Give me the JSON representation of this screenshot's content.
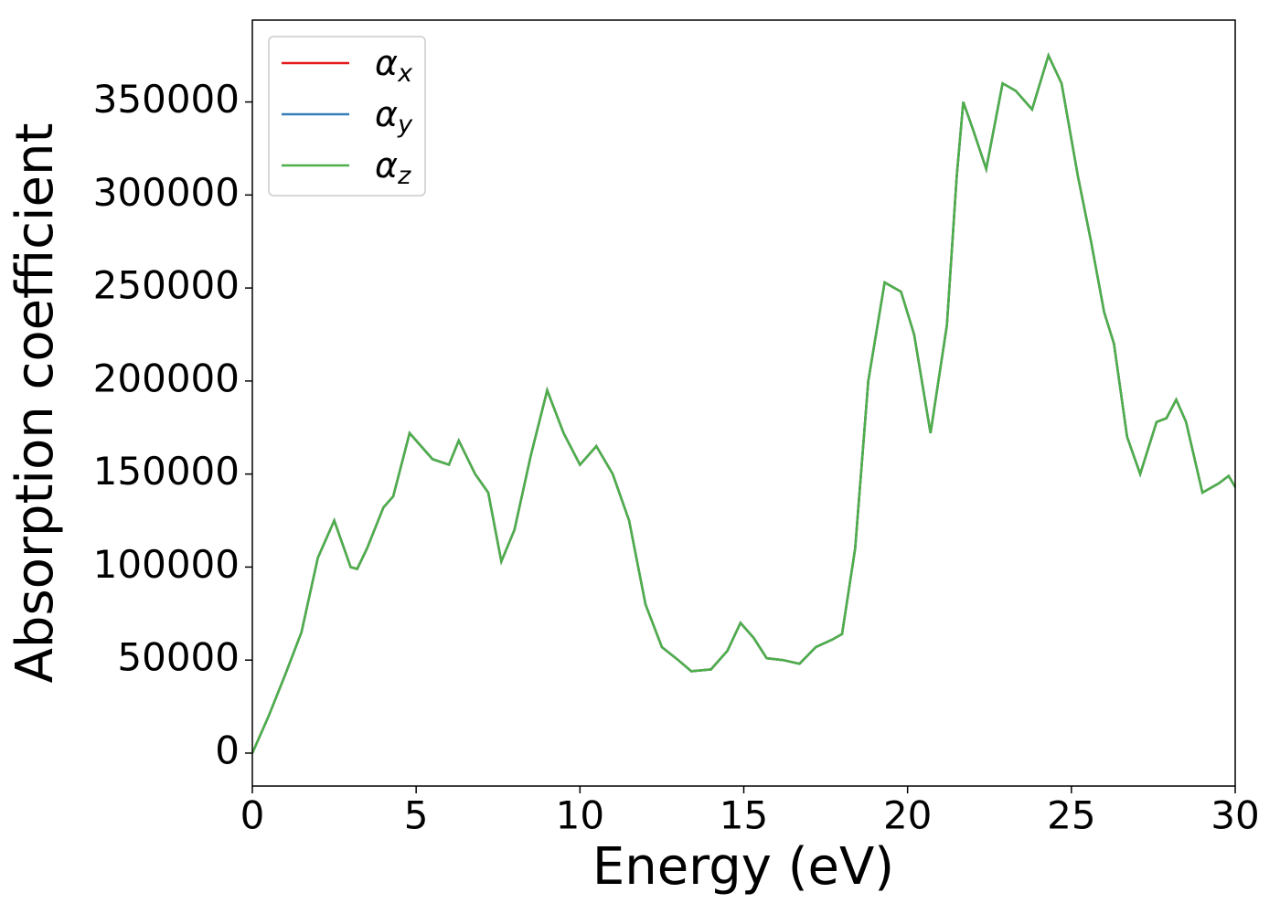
{
  "chart_data": {
    "type": "line",
    "x_label": "Energy (eV)",
    "y_label": "Absorption coefficient",
    "x": [
      0,
      0.5,
      1,
      1.5,
      2,
      2.5,
      3,
      3.2,
      3.5,
      4,
      4.3,
      4.8,
      5.5,
      6,
      6.3,
      6.8,
      7.2,
      7.6,
      8,
      8.5,
      9,
      9.5,
      10,
      10.5,
      11,
      11.5,
      12,
      12.5,
      13,
      13.4,
      14,
      14.5,
      14.9,
      15.3,
      15.7,
      16.2,
      16.7,
      17.2,
      17.7,
      18,
      18.4,
      18.8,
      19.3,
      19.8,
      20.2,
      20.7,
      21.2,
      21.5,
      21.7,
      22,
      22.4,
      22.9,
      23.3,
      23.8,
      24.3,
      24.7,
      25.2,
      25.6,
      26,
      26.3,
      26.7,
      27.1,
      27.6,
      27.9,
      28.2,
      28.5,
      29,
      29.5,
      29.8,
      30
    ],
    "series": [
      {
        "name": "αx",
        "color": "#e41a1c",
        "values": [
          0,
          20000,
          42000,
          65000,
          105000,
          125000,
          100000,
          99000,
          110000,
          132000,
          138000,
          172000,
          158000,
          155000,
          168000,
          150000,
          140000,
          103000,
          120000,
          160000,
          195000,
          172000,
          155000,
          165000,
          150000,
          125000,
          80000,
          57000,
          50000,
          44000,
          45000,
          55000,
          70000,
          62000,
          51000,
          50000,
          48000,
          57000,
          61000,
          64000,
          110000,
          200000,
          253000,
          248000,
          225000,
          172000,
          230000,
          310000,
          350000,
          335000,
          314000,
          360000,
          356000,
          346000,
          375000,
          360000,
          310000,
          275000,
          237000,
          220000,
          170000,
          150000,
          178000,
          180000,
          190000,
          178000,
          140000,
          145000,
          149000,
          143000
        ]
      },
      {
        "name": "αy",
        "color": "#377eb8",
        "values": [
          0,
          20000,
          42000,
          65000,
          105000,
          125000,
          100000,
          99000,
          110000,
          132000,
          138000,
          172000,
          158000,
          155000,
          168000,
          150000,
          140000,
          103000,
          120000,
          160000,
          195000,
          172000,
          155000,
          165000,
          150000,
          125000,
          80000,
          57000,
          50000,
          44000,
          45000,
          55000,
          70000,
          62000,
          51000,
          50000,
          48000,
          57000,
          61000,
          64000,
          110000,
          200000,
          253000,
          248000,
          225000,
          172000,
          230000,
          310000,
          350000,
          335000,
          314000,
          360000,
          356000,
          346000,
          375000,
          360000,
          310000,
          275000,
          237000,
          220000,
          170000,
          150000,
          178000,
          180000,
          190000,
          178000,
          140000,
          145000,
          149000,
          143000
        ]
      },
      {
        "name": "αz",
        "color": "#4daf4a",
        "values": [
          0,
          20000,
          42000,
          65000,
          105000,
          125000,
          100000,
          99000,
          110000,
          132000,
          138000,
          172000,
          158000,
          155000,
          168000,
          150000,
          140000,
          103000,
          120000,
          160000,
          195000,
          172000,
          155000,
          165000,
          150000,
          125000,
          80000,
          57000,
          50000,
          44000,
          45000,
          55000,
          70000,
          62000,
          51000,
          50000,
          48000,
          57000,
          61000,
          64000,
          110000,
          200000,
          253000,
          248000,
          225000,
          172000,
          230000,
          310000,
          350000,
          335000,
          314000,
          360000,
          356000,
          346000,
          375000,
          360000,
          310000,
          275000,
          237000,
          220000,
          170000,
          150000,
          178000,
          180000,
          190000,
          178000,
          140000,
          145000,
          149000,
          143000
        ]
      }
    ],
    "xlim": [
      0,
      30
    ],
    "xticks": [
      0,
      5,
      10,
      15,
      20,
      25,
      30
    ],
    "ylim": [
      -17700,
      394000
    ],
    "yticks": [
      0,
      50000,
      100000,
      150000,
      200000,
      250000,
      300000,
      350000
    ],
    "grid": false,
    "legend": "upper left"
  }
}
